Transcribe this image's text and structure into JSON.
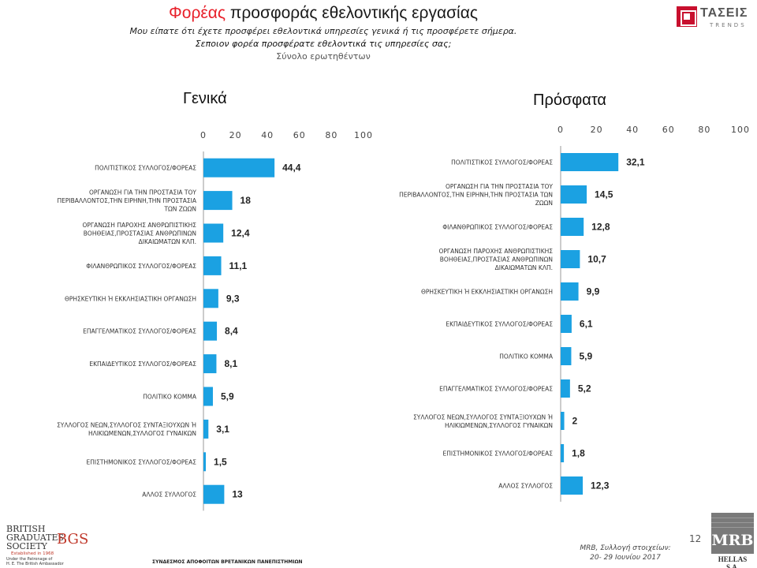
{
  "header": {
    "title_accent": "Φορέας",
    "title_rest": "προσφοράς εθελοντικής εργασίας",
    "subtitle_1": "Μου είπατε ότι έχετε προσφέρει εθελοντικά υπηρεσίες γενικά ή τις προσφέρετε σήμερα.",
    "subtitle_2": "Σεποιον φορέα προσφέρατε εθελοντικά τις υπηρεσίες σας;",
    "subtitle_3": "Σύνολο ερωτηθέντων"
  },
  "logo_tases": {
    "name": "ΤΑΣΕΙΣ",
    "sub": "TRENDS"
  },
  "chart_data": [
    {
      "type": "bar",
      "orientation": "horizontal",
      "title": "Γενικά",
      "xlim": [
        0,
        100
      ],
      "xticks": [
        0,
        20,
        40,
        60,
        80,
        100
      ],
      "bar_color": "#1ba1e2",
      "categories": [
        "ΠΟΛΙΤΙΣΤΙΚΟΣ ΣΥΛΛΟΓΟΣ/ΦΟΡΕΑΣ",
        "ΟΡΓΑΝΩΣΗ ΓΙΑ ΤΗΝ ΠΡΟΣΤΑΣΙΑ ΤΟΥ ΠΕΡΙΒΑΛΛΟΝΤΟΣ,ΤΗΝ ΕΙΡΗΝΗ,ΤΗΝ ΠΡΟΣΤΑΣΙΑ ΤΩΝ ΖΩΩΝ",
        "ΟΡΓΑΝΩΣΗ ΠΑΡΟΧΗΣ ΑΝΘΡΩΠΙΣΤΙΚΗΣ ΒΟΗΘΕΙΑΣ,ΠΡΟΣΤΑΣΙΑΣ ΑΝΘΡΩΠΙΝΩΝ ΔΙΚΑΙΩΜΑΤΩΝ ΚΛΠ.",
        "ΦΙΛΑΝΘΡΩΠΙΚΟΣ ΣΥΛΛΟΓΟΣ/ΦΟΡΕΑΣ",
        "ΘΡΗΣΚΕΥΤΙΚΗ Ή ΕΚΚΛΗΣΙΑΣΤΙΚΗ ΟΡΓΑΝΩΣΗ",
        "ΕΠΑΓΓΕΛΜΑΤΙΚΟΣ ΣΥΛΛΟΓΟΣ/ΦΟΡΕΑΣ",
        "ΕΚΠΑΙΔΕΥΤΙΚΟΣ ΣΥΛΛΟΓΟΣ/ΦΟΡΕΑΣ",
        "ΠΟΛΙΤΙΚΟ ΚΟΜΜΑ",
        "ΣΥΛΛΟΓΟΣ ΝΕΩΝ,ΣΥΛΛΟΓΟΣ ΣΥΝΤΑΞΙΟΥΧΩΝ Ή ΗΛΙΚΙΩΜΕΝΩΝ,ΣΥΛΛΟΓΟΣ ΓΥΝΑΙΚΩΝ",
        "ΕΠΙΣΤΗΜΟΝΙΚΟΣ ΣΥΛΛΟΓΟΣ/ΦΟΡΕΑΣ",
        "ΑΛΛΟΣ ΣΥΛΛΟΓΟΣ"
      ],
      "category_lines": [
        [
          "ΠΟΛΙΤΙΣΤΙΚΟΣ ΣΥΛΛΟΓΟΣ/ΦΟΡΕΑΣ"
        ],
        [
          "ΟΡΓΑΝΩΣΗ ΓΙΑ ΤΗΝ ΠΡΟΣΤΑΣΙΑ ΤΟΥ",
          "ΠΕΡΙΒΑΛΛΟΝΤΟΣ,ΤΗΝ ΕΙΡΗΝΗ,ΤΗΝ ΠΡΟΣΤΑΣΙΑ",
          "ΤΩΝ ΖΩΩΝ"
        ],
        [
          "ΟΡΓΑΝΩΣΗ ΠΑΡΟΧΗΣ ΑΝΘΡΩΠΙΣΤΙΚΗΣ",
          "ΒΟΗΘΕΙΑΣ,ΠΡΟΣΤΑΣΙΑΣ ΑΝΘΡΩΠΙΝΩΝ",
          "ΔΙΚΑΙΩΜΑΤΩΝ ΚΛΠ."
        ],
        [
          "ΦΙΛΑΝΘΡΩΠΙΚΟΣ ΣΥΛΛΟΓΟΣ/ΦΟΡΕΑΣ"
        ],
        [
          "ΘΡΗΣΚΕΥΤΙΚΗ Ή ΕΚΚΛΗΣΙΑΣΤΙΚΗ ΟΡΓΑΝΩΣΗ"
        ],
        [
          "ΕΠΑΓΓΕΛΜΑΤΙΚΟΣ ΣΥΛΛΟΓΟΣ/ΦΟΡΕΑΣ"
        ],
        [
          "ΕΚΠΑΙΔΕΥΤΙΚΟΣ ΣΥΛΛΟΓΟΣ/ΦΟΡΕΑΣ"
        ],
        [
          "ΠΟΛΙΤΙΚΟ ΚΟΜΜΑ"
        ],
        [
          "ΣΥΛΛΟΓΟΣ ΝΕΩΝ,ΣΥΛΛΟΓΟΣ ΣΥΝΤΑΞΙΟΥΧΩΝ Ή",
          "ΗΛΙΚΙΩΜΕΝΩΝ,ΣΥΛΛΟΓΟΣ ΓΥΝΑΙΚΩΝ"
        ],
        [
          "ΕΠΙΣΤΗΜΟΝΙΚΟΣ ΣΥΛΛΟΓΟΣ/ΦΟΡΕΑΣ"
        ],
        [
          "ΑΛΛΟΣ ΣΥΛΛΟΓΟΣ"
        ]
      ],
      "values": [
        44.4,
        18,
        12.4,
        11.1,
        9.3,
        8.4,
        8.1,
        5.9,
        3.1,
        1.5,
        13
      ],
      "value_labels": [
        "44,4",
        "18",
        "12,4",
        "11,1",
        "9,3",
        "8,4",
        "8,1",
        "5,9",
        "3,1",
        "1,5",
        "13"
      ]
    },
    {
      "type": "bar",
      "orientation": "horizontal",
      "title": "Πρόσφατα",
      "xlim": [
        0,
        100
      ],
      "xticks": [
        0,
        20,
        40,
        60,
        80,
        100
      ],
      "bar_color": "#1ba1e2",
      "categories": [
        "ΠΟΛΙΤΙΣΤΙΚΟΣ ΣΥΛΛΟΓΟΣ/ΦΟΡΕΑΣ",
        "ΟΡΓΑΝΩΣΗ ΓΙΑ ΤΗΝ ΠΡΟΣΤΑΣΙΑ ΤΟΥ ΠΕΡΙΒΑΛΛΟΝΤΟΣ,ΤΗΝ ΕΙΡΗΝΗ,ΤΗΝ ΠΡΟΣΤΑΣΙΑ ΤΩΝ ΖΩΩΝ",
        "ΦΙΛΑΝΘΡΩΠΙΚΟΣ ΣΥΛΛΟΓΟΣ/ΦΟΡΕΑΣ",
        "ΟΡΓΑΝΩΣΗ ΠΑΡΟΧΗΣ ΑΝΘΡΩΠΙΣΤΙΚΗΣ ΒΟΗΘΕΙΑΣ,ΠΡΟΣΤΑΣΙΑΣ ΑΝΘΡΩΠΙΝΩΝ ΔΙΚΑΙΩΜΑΤΩΝ ΚΛΠ.",
        "ΘΡΗΣΚΕΥΤΙΚΗ Ή ΕΚΚΛΗΣΙΑΣΤΙΚΗ ΟΡΓΑΝΩΣΗ",
        "ΕΚΠΑΙΔΕΥΤΙΚΟΣ ΣΥΛΛΟΓΟΣ/ΦΟΡΕΑΣ",
        "ΠΟΛΙΤΙΚΟ ΚΟΜΜΑ",
        "ΕΠΑΓΓΕΛΜΑΤΙΚΟΣ ΣΥΛΛΟΓΟΣ/ΦΟΡΕΑΣ",
        "ΣΥΛΛΟΓΟΣ ΝΕΩΝ,ΣΥΛΛΟΓΟΣ ΣΥΝΤΑΞΙΟΥΧΩΝ Ή ΗΛΙΚΙΩΜΕΝΩΝ,ΣΥΛΛΟΓΟΣ ΓΥΝΑΙΚΩΝ",
        "ΕΠΙΣΤΗΜΟΝΙΚΟΣ ΣΥΛΛΟΓΟΣ/ΦΟΡΕΑΣ",
        "ΑΛΛΟΣ ΣΥΛΛΟΓΟΣ"
      ],
      "category_lines": [
        [
          "ΠΟΛΙΤΙΣΤΙΚΟΣ ΣΥΛΛΟΓΟΣ/ΦΟΡΕΑΣ"
        ],
        [
          "ΟΡΓΑΝΩΣΗ ΓΙΑ ΤΗΝ ΠΡΟΣΤΑΣΙΑ ΤΟΥ",
          "ΠΕΡΙΒΑΛΛΟΝΤΟΣ,ΤΗΝ ΕΙΡΗΝΗ,ΤΗΝ ΠΡΟΣΤΑΣΙΑ ΤΩΝ",
          "ΖΩΩΝ"
        ],
        [
          "ΦΙΛΑΝΘΡΩΠΙΚΟΣ ΣΥΛΛΟΓΟΣ/ΦΟΡΕΑΣ"
        ],
        [
          "ΟΡΓΑΝΩΣΗ ΠΑΡΟΧΗΣ ΑΝΘΡΩΠΙΣΤΙΚΗΣ",
          "ΒΟΗΘΕΙΑΣ,ΠΡΟΣΤΑΣΙΑΣ ΑΝΘΡΩΠΙΝΩΝ",
          "ΔΙΚΑΙΩΜΑΤΩΝ ΚΛΠ."
        ],
        [
          "ΘΡΗΣΚΕΥΤΙΚΗ Ή ΕΚΚΛΗΣΙΑΣΤΙΚΗ ΟΡΓΑΝΩΣΗ"
        ],
        [
          "ΕΚΠΑΙΔΕΥΤΙΚΟΣ ΣΥΛΛΟΓΟΣ/ΦΟΡΕΑΣ"
        ],
        [
          "ΠΟΛΙΤΙΚΟ ΚΟΜΜΑ"
        ],
        [
          "ΕΠΑΓΓΕΛΜΑΤΙΚΟΣ ΣΥΛΛΟΓΟΣ/ΦΟΡΕΑΣ"
        ],
        [
          "ΣΥΛΛΟΓΟΣ ΝΕΩΝ,ΣΥΛΛΟΓΟΣ ΣΥΝΤΑΞΙΟΥΧΩΝ Ή",
          "ΗΛΙΚΙΩΜΕΝΩΝ,ΣΥΛΛΟΓΟΣ ΓΥΝΑΙΚΩΝ"
        ],
        [
          "ΕΠΙΣΤΗΜΟΝΙΚΟΣ ΣΥΛΛΟΓΟΣ/ΦΟΡΕΑΣ"
        ],
        [
          "ΑΛΛΟΣ ΣΥΛΛΟΓΟΣ"
        ]
      ],
      "values": [
        32.1,
        14.5,
        12.8,
        10.7,
        9.9,
        6.1,
        5.9,
        5.2,
        2,
        1.8,
        12.3
      ],
      "value_labels": [
        "32,1",
        "14,5",
        "12,8",
        "10,7",
        "9,9",
        "6,1",
        "5,9",
        "5,2",
        "2",
        "1,8",
        "12,3"
      ]
    }
  ],
  "footer": {
    "bgs_main": "BRITISH GRADUATES SOCIETY",
    "bgs_monogram": "BGS",
    "bgs_established": "Established in 1968",
    "bgs_patron_1": "Under the Patronage of",
    "bgs_patron_2": "H. E. The British Ambassador",
    "association": "ΣΥΝΔΕΣΜΟΣ ΑΠΟΦΟΙΤΩΝ ΒΡΕΤΑΝΙΚΩΝ ΠΑΝΕΠΙΣΤΗΜΙΩΝ",
    "page_number": "12",
    "source_line_1": "MRB, Συλλογή στοιχείων:",
    "source_line_2": "20- 29 Ιουνίου 2017",
    "mrb_logo": "MRB",
    "mrb_sub": "HELLAS S.A."
  }
}
